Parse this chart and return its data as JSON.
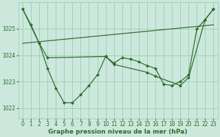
{
  "background_color": "#cce8dc",
  "grid_color": "#99ccb3",
  "line_color": "#2d6b2d",
  "marker_color": "#2d6b2d",
  "xlabel": "Graphe pression niveau de la mer (hPa)",
  "xlim": [
    -0.5,
    23.5
  ],
  "ylim": [
    1021.6,
    1026.0
  ],
  "yticks": [
    1022,
    1023,
    1024,
    1025
  ],
  "xticks": [
    0,
    1,
    2,
    3,
    4,
    5,
    6,
    7,
    8,
    9,
    10,
    11,
    12,
    13,
    14,
    15,
    16,
    17,
    18,
    19,
    20,
    21,
    22,
    23
  ],
  "series1_x": [
    0,
    1,
    2,
    3,
    4,
    5,
    6,
    7,
    8,
    9,
    10,
    11,
    12,
    13,
    14,
    15,
    16,
    17,
    18,
    19,
    20,
    21,
    22,
    23
  ],
  "series1_y": [
    1025.75,
    1025.15,
    1024.45,
    1023.5,
    1022.75,
    1022.2,
    1022.2,
    1022.5,
    1022.85,
    1023.25,
    1023.95,
    1023.7,
    1023.9,
    1023.85,
    1023.75,
    1023.6,
    1023.5,
    1022.9,
    1022.85,
    1023.0,
    1023.25,
    1025.0,
    1025.35,
    1025.75
  ],
  "series2_x": [
    0,
    2,
    3,
    10,
    11,
    15,
    16,
    19,
    20,
    22,
    23
  ],
  "series2_y": [
    1025.75,
    1024.45,
    1023.9,
    1023.95,
    1023.65,
    1023.35,
    1023.2,
    1022.85,
    1023.15,
    1025.35,
    1025.75
  ],
  "series3_x": [
    0,
    23
  ],
  "series3_y": [
    1024.45,
    1025.15
  ],
  "tick_fontsize": 5.5,
  "label_fontsize": 6.5,
  "linewidth": 0.9,
  "markersize": 2.2
}
